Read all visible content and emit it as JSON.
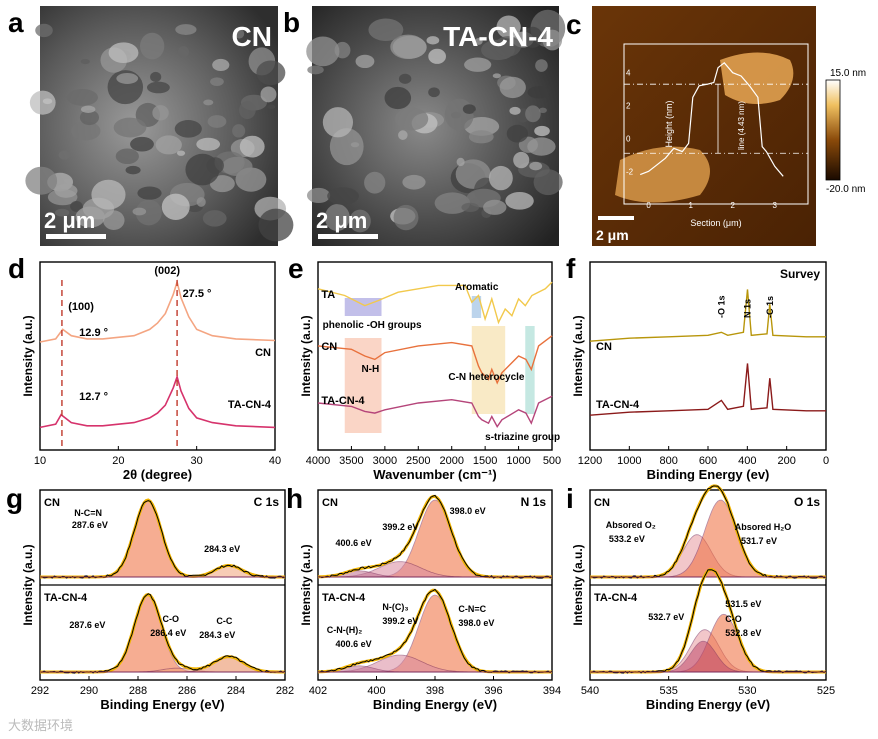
{
  "colors": {
    "cn_xrd": "#f4a582",
    "tacn_xrd": "#d6336c",
    "ta_ftir": "#f2c94c",
    "cn_ftir": "#e8713c",
    "tacn_ftir": "#b5457a",
    "survey_cn": "#b8960b",
    "survey_tacn": "#8b1a1a",
    "xps_env": "#f0b400",
    "xps_raw": "#000000",
    "xps_fill": "#e8663c",
    "bg_line": "#7a2a5a"
  },
  "panels": {
    "a": {
      "letter": "a",
      "label": "CN",
      "scalebar": "2 μm"
    },
    "b": {
      "letter": "b",
      "label": "TA-CN-4",
      "scalebar": "2 μm"
    },
    "c": {
      "letter": "c",
      "scalebar": "2 μm",
      "colorbar_max": "15.0 nm",
      "colorbar_min": "-20.0 nm",
      "line_label": "line (4.43 nm)"
    }
  },
  "chart_data": [
    {
      "id": "c-inset",
      "type": "line",
      "xlabel": "Section (μm)",
      "ylabel": "Height (nm)",
      "xticks": [
        "0",
        "1",
        "2",
        "3"
      ],
      "yticks": [
        "4",
        "2",
        "0",
        "-2"
      ],
      "xlim": [
        -0.3,
        3.6
      ],
      "ylim": [
        -3.5,
        5.5
      ],
      "x": [
        -0.2,
        0.0,
        0.2,
        0.4,
        0.6,
        0.8,
        0.95,
        1.05,
        1.2,
        1.4,
        1.55,
        1.65,
        1.8,
        2.0,
        2.2,
        2.4,
        2.6,
        2.7,
        2.8,
        3.0,
        3.2
      ],
      "y": [
        -2.2,
        -2.0,
        -1.6,
        -1.2,
        -0.6,
        -0.8,
        -0.3,
        2.5,
        3.2,
        3.3,
        3.4,
        4.3,
        4.6,
        4.0,
        3.8,
        3.2,
        2.5,
        -0.5,
        -0.8,
        -1.7,
        -2.3
      ]
    },
    {
      "id": "d",
      "letter": "d",
      "type": "line",
      "xlabel": "2θ (degree)",
      "ylabel": "Intensity (a.u.)",
      "xlim": [
        10,
        40
      ],
      "xticks": [
        "10",
        "20",
        "30",
        "40"
      ],
      "series": [
        {
          "name": "CN",
          "x": [
            10,
            12,
            12.9,
            14,
            16,
            18,
            20,
            22,
            24,
            25,
            26,
            27,
            27.5,
            28,
            29,
            30,
            32,
            35,
            40
          ],
          "values": [
            0.62,
            0.64,
            0.7,
            0.66,
            0.64,
            0.64,
            0.65,
            0.66,
            0.7,
            0.74,
            0.8,
            0.92,
            1.0,
            0.9,
            0.78,
            0.7,
            0.66,
            0.64,
            0.63
          ]
        },
        {
          "name": "TA-CN-4",
          "x": [
            10,
            12,
            12.7,
            14,
            16,
            18,
            20,
            22,
            24,
            25,
            26,
            27,
            27.5,
            28,
            29,
            30,
            32,
            35,
            40
          ],
          "values": [
            0.08,
            0.1,
            0.16,
            0.11,
            0.09,
            0.09,
            0.1,
            0.11,
            0.14,
            0.17,
            0.22,
            0.33,
            0.4,
            0.31,
            0.2,
            0.14,
            0.11,
            0.09,
            0.08
          ]
        }
      ],
      "annotations": [
        "(100)",
        "(002)",
        "12.9 °",
        "27.5 °",
        "12.7 °"
      ],
      "series_labels": [
        "CN",
        "TA-CN-4"
      ]
    },
    {
      "id": "e",
      "letter": "e",
      "type": "line",
      "xlabel": "Wavenumber (cm⁻¹)",
      "ylabel": "Intensity (a.u.)",
      "xlim": [
        4000,
        500
      ],
      "xticks": [
        "4000",
        "3500",
        "3000",
        "2500",
        "2000",
        "1500",
        "1000",
        "500"
      ],
      "series": [
        {
          "name": "TA",
          "x": [
            4000,
            3600,
            3300,
            3100,
            2800,
            2200,
            1800,
            1700,
            1600,
            1500,
            1400,
            1300,
            1200,
            1100,
            1000,
            900,
            800,
            600,
            500
          ],
          "values": [
            0.9,
            0.86,
            0.8,
            0.83,
            0.88,
            0.92,
            0.92,
            0.82,
            0.86,
            0.72,
            0.84,
            0.7,
            0.78,
            0.74,
            0.84,
            0.8,
            0.86,
            0.9,
            0.94
          ]
        },
        {
          "name": "CN",
          "x": [
            4000,
            3500,
            3300,
            3150,
            3000,
            2500,
            2000,
            1700,
            1600,
            1550,
            1450,
            1400,
            1320,
            1250,
            1000,
            890,
            810,
            700,
            500
          ],
          "values": [
            0.56,
            0.54,
            0.5,
            0.48,
            0.52,
            0.56,
            0.58,
            0.56,
            0.44,
            0.4,
            0.36,
            0.42,
            0.34,
            0.4,
            0.5,
            0.48,
            0.42,
            0.56,
            0.62
          ]
        },
        {
          "name": "TA-CN-4",
          "x": [
            4000,
            3500,
            3300,
            3150,
            3000,
            2500,
            2000,
            1700,
            1600,
            1550,
            1450,
            1400,
            1320,
            1250,
            1000,
            890,
            810,
            700,
            500
          ],
          "values": [
            0.22,
            0.2,
            0.17,
            0.16,
            0.18,
            0.22,
            0.24,
            0.22,
            0.14,
            0.12,
            0.1,
            0.14,
            0.08,
            0.12,
            0.18,
            0.16,
            0.1,
            0.22,
            0.26
          ]
        }
      ],
      "annotations": [
        "Aromatic",
        "phenolic -OH groups",
        "N-H",
        "C-N heterocycle",
        "s-triazine group"
      ],
      "series_labels": [
        "TA",
        "CN",
        "TA-CN-4"
      ]
    },
    {
      "id": "f",
      "letter": "f",
      "type": "line",
      "title": "Survey",
      "xlabel": "Binding Energy (ev)",
      "ylabel": "Intensity (a.u.)",
      "xlim": [
        1200,
        0
      ],
      "xticks": [
        "1200",
        "1000",
        "800",
        "600",
        "400",
        "200",
        "0"
      ],
      "series": [
        {
          "name": "CN",
          "x": [
            1200,
            1000,
            800,
            600,
            532,
            500,
            420,
            399,
            380,
            300,
            286,
            270,
            100,
            0
          ],
          "values": [
            0.6,
            0.62,
            0.63,
            0.64,
            0.66,
            0.64,
            0.66,
            0.95,
            0.64,
            0.65,
            0.85,
            0.64,
            0.63,
            0.63
          ]
        },
        {
          "name": "TA-CN-4",
          "x": [
            1200,
            1000,
            800,
            600,
            532,
            500,
            420,
            399,
            380,
            300,
            286,
            270,
            100,
            0
          ],
          "values": [
            0.1,
            0.12,
            0.13,
            0.14,
            0.2,
            0.14,
            0.16,
            0.45,
            0.14,
            0.15,
            0.35,
            0.14,
            0.13,
            0.13
          ]
        }
      ],
      "annotations": [
        "-O 1s",
        "N 1s",
        "-C 1s"
      ],
      "series_labels": [
        "CN",
        "TA-CN-4"
      ]
    },
    {
      "id": "g",
      "letter": "g",
      "type": "line",
      "title": "C 1s",
      "xlabel": "Binding Energy (eV)",
      "ylabel": "Intensity (a.u.)",
      "xlim": [
        292,
        282
      ],
      "xticks": [
        "292",
        "290",
        "288",
        "286",
        "284",
        "282"
      ],
      "series": [
        {
          "name": "CN",
          "peaks": [
            {
              "center": 287.6,
              "height": 1.0,
              "width": 0.55
            },
            {
              "center": 284.3,
              "height": 0.15,
              "width": 0.55
            }
          ]
        },
        {
          "name": "TA-CN-4",
          "peaks": [
            {
              "center": 287.6,
              "height": 1.0,
              "width": 0.55
            },
            {
              "center": 286.4,
              "height": 0.05,
              "width": 0.6
            },
            {
              "center": 284.3,
              "height": 0.2,
              "width": 0.6
            }
          ]
        }
      ],
      "annotations": [
        "N-C=N",
        "287.6 eV",
        "284.3 eV",
        "287.6 eV",
        "C-O",
        "286.4 eV",
        "C-C",
        "284.3 eV"
      ],
      "series_labels": [
        "CN",
        "TA-CN-4"
      ]
    },
    {
      "id": "h",
      "letter": "h",
      "type": "line",
      "title": "N 1s",
      "xlabel": "Binding Energy (eV)",
      "ylabel": "Intensity (a.u.)",
      "xlim": [
        402,
        394
      ],
      "xticks": [
        "402",
        "400",
        "398",
        "396",
        "394"
      ],
      "series": [
        {
          "name": "CN",
          "peaks": [
            {
              "center": 398.0,
              "height": 1.0,
              "width": 0.55
            },
            {
              "center": 399.2,
              "height": 0.2,
              "width": 0.7
            },
            {
              "center": 400.6,
              "height": 0.08,
              "width": 0.5
            }
          ]
        },
        {
          "name": "TA-CN-4",
          "peaks": [
            {
              "center": 398.0,
              "height": 1.0,
              "width": 0.55
            },
            {
              "center": 399.2,
              "height": 0.22,
              "width": 0.75
            },
            {
              "center": 400.6,
              "height": 0.08,
              "width": 0.5
            }
          ]
        }
      ],
      "annotations": [
        "400.6 eV",
        "399.2 eV",
        "398.0 eV",
        "C-N-(H)₂",
        "400.6 eV",
        "N-(C)₃",
        "399.2 eV",
        "C-N=C",
        "398.0 eV"
      ],
      "series_labels": [
        "CN",
        "TA-CN-4"
      ]
    },
    {
      "id": "i",
      "letter": "i",
      "type": "line",
      "title": "O 1s",
      "xlabel": "Binding Energy (eV)",
      "ylabel": "Intensity (a.u.)",
      "xlim": [
        540,
        525
      ],
      "xticks": [
        "540",
        "535",
        "530",
        "525"
      ],
      "series": [
        {
          "name": "CN",
          "peaks": [
            {
              "center": 533.2,
              "height": 0.55,
              "width": 0.9
            },
            {
              "center": 531.7,
              "height": 1.0,
              "width": 1.0
            }
          ]
        },
        {
          "name": "TA-CN-4",
          "peaks": [
            {
              "center": 532.7,
              "height": 0.55,
              "width": 0.9
            },
            {
              "center": 531.5,
              "height": 0.75,
              "width": 0.9
            },
            {
              "center": 532.8,
              "height": 0.4,
              "width": 0.8
            }
          ]
        }
      ],
      "annotations": [
        "Absored O₂",
        "533.2 eV",
        "Absored H₂O",
        "531.7 eV",
        "532.7 eV",
        "531.5 eV",
        "C-O",
        "532.8 eV"
      ],
      "series_labels": [
        "CN",
        "TA-CN-4"
      ]
    }
  ],
  "watermark": "大数据环境"
}
